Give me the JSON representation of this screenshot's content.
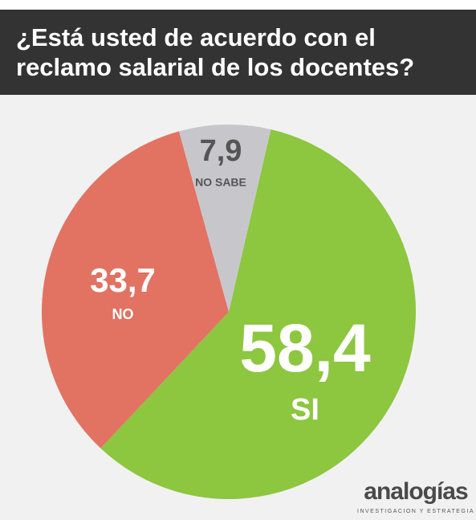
{
  "chart_data": {
    "type": "pie",
    "title": "¿Está usted de acuerdo con el reclamo salarial de los docentes?",
    "categories": [
      "SI",
      "NO",
      "NO SABE"
    ],
    "values": [
      58.4,
      33.7,
      7.9
    ],
    "value_labels": [
      "58,4",
      "33,7",
      "7,9"
    ],
    "colors": [
      "#8dc63f",
      "#e27262",
      "#c7c7cb"
    ]
  },
  "brand": {
    "name": "analogías",
    "tagline": "INVESTIGACION Y ESTRATEGIA"
  }
}
